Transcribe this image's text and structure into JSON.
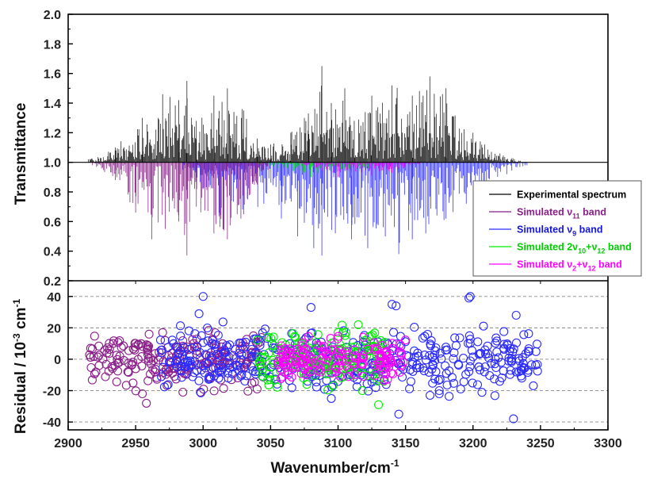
{
  "chart_data": [
    {
      "type": "line",
      "panel": "spectrum",
      "ylabel": "Transmittance",
      "ylim": [
        0.2,
        2.0
      ],
      "y_ticks": [
        "0.2",
        "0.4",
        "0.6",
        "0.8",
        "1.0",
        "1.2",
        "1.4",
        "1.6",
        "1.8",
        "2.0"
      ],
      "xlim": [
        2900,
        3300
      ],
      "baseline": 1.0,
      "series": [
        {
          "name": "Experimental spectrum",
          "color": "#000000",
          "direction": "up",
          "envelope": [
            [
              2915,
              1.02
            ],
            [
              2935,
              1.1
            ],
            [
              2955,
              1.3
            ],
            [
              2970,
              1.46
            ],
            [
              2982,
              1.42
            ],
            [
              2988,
              1.55
            ],
            [
              2995,
              1.28
            ],
            [
              3008,
              1.45
            ],
            [
              3018,
              1.5
            ],
            [
              3030,
              1.35
            ],
            [
              3040,
              1.16
            ],
            [
              3050,
              1.12
            ],
            [
              3065,
              1.2
            ],
            [
              3078,
              1.33
            ],
            [
              3088,
              1.65
            ],
            [
              3095,
              1.4
            ],
            [
              3105,
              1.5
            ],
            [
              3112,
              1.28
            ],
            [
              3125,
              1.45
            ],
            [
              3140,
              1.52
            ],
            [
              3155,
              1.45
            ],
            [
              3168,
              1.58
            ],
            [
              3180,
              1.5
            ],
            [
              3200,
              1.2
            ],
            [
              3220,
              1.06
            ],
            [
              3235,
              1.01
            ]
          ]
        },
        {
          "name": "Simulated ν11 band",
          "color": "#8b1f8b",
          "direction": "down",
          "envelope": [
            [
              2918,
              0.98
            ],
            [
              2935,
              0.88
            ],
            [
              2950,
              0.66
            ],
            [
              2962,
              0.48
            ],
            [
              2972,
              0.55
            ],
            [
              2982,
              0.6
            ],
            [
              2988,
              0.37
            ],
            [
              2995,
              0.7
            ],
            [
              3008,
              0.52
            ],
            [
              3018,
              0.48
            ],
            [
              3028,
              0.62
            ],
            [
              3040,
              0.85
            ],
            [
              3048,
              0.95
            ]
          ]
        },
        {
          "name": "Simulated ν9 band",
          "color": "#2b2bff",
          "direction": "down",
          "envelope": [
            [
              2985,
              0.95
            ],
            [
              3000,
              0.82
            ],
            [
              3015,
              0.55
            ],
            [
              3030,
              0.65
            ],
            [
              3045,
              0.72
            ],
            [
              3058,
              0.62
            ],
            [
              3070,
              0.5
            ],
            [
              3082,
              0.42
            ],
            [
              3088,
              0.37
            ],
            [
              3098,
              0.52
            ],
            [
              3110,
              0.48
            ],
            [
              3122,
              0.42
            ],
            [
              3135,
              0.5
            ],
            [
              3145,
              0.38
            ],
            [
              3155,
              0.48
            ],
            [
              3165,
              0.52
            ],
            [
              3180,
              0.62
            ],
            [
              3195,
              0.72
            ],
            [
              3210,
              0.82
            ],
            [
              3225,
              0.92
            ],
            [
              3240,
              0.98
            ]
          ]
        },
        {
          "name": "Simulated 2ν10+ν12 band",
          "color": "#00ee00",
          "direction": "down",
          "envelope": [
            [
              3040,
              0.99
            ],
            [
              3055,
              0.96
            ],
            [
              3070,
              0.92
            ],
            [
              3080,
              0.9
            ],
            [
              3095,
              0.94
            ],
            [
              3110,
              0.91
            ],
            [
              3120,
              0.95
            ],
            [
              3130,
              0.98
            ]
          ]
        },
        {
          "name": "Simulated ν2+ν12 band",
          "color": "#ff00ff",
          "direction": "down",
          "envelope": [
            [
              3070,
              0.99
            ],
            [
              3090,
              0.94
            ],
            [
              3100,
              0.9
            ],
            [
              3110,
              0.93
            ],
            [
              3125,
              0.91
            ],
            [
              3140,
              0.93
            ],
            [
              3150,
              0.96
            ],
            [
              3160,
              0.99
            ]
          ]
        }
      ],
      "legend": {
        "placement": "right",
        "entries": [
          {
            "label": "Experimental spectrum",
            "color": "#000000",
            "text_color": "#000000"
          },
          {
            "label": "Simulated ν11 band",
            "color": "#8b1f8b",
            "text_color": "#8b1f8b"
          },
          {
            "label": "Simulated ν9 band",
            "color": "#2b2bff",
            "text_color": "#1515dd"
          },
          {
            "label": "Simulated 2ν10+ν12 band",
            "color": "#00ee00",
            "text_color": "#00cc00"
          },
          {
            "label": "Simulated ν2+ν12 band",
            "color": "#ff00ff",
            "text_color": "#ff00ff"
          }
        ]
      }
    },
    {
      "type": "scatter",
      "panel": "residuals",
      "ylabel_main": "Residual / 10",
      "ylabel_sup": "-3",
      "ylabel_end": " cm",
      "ylabel_sup2": "-1",
      "ylim": [
        -45,
        50
      ],
      "y_ticks": [
        "-40",
        "-20",
        "0",
        "20",
        "40"
      ],
      "grid": "dashed horizontal",
      "xlabel_main": "Wavenumber/cm",
      "xlabel_sup": "-1",
      "xlim": [
        2900,
        3300
      ],
      "x_ticks": [
        "2900",
        "2950",
        "3000",
        "3050",
        "3100",
        "3150",
        "3200",
        "3250",
        "3300"
      ],
      "series": [
        {
          "name": "ν11",
          "color": "#8b1f8b",
          "x_range": [
            2915,
            3045
          ],
          "spread": 8,
          "outliers": [
            [
              2955,
              -22
            ],
            [
              2958,
              -28
            ],
            [
              2985,
              -21
            ],
            [
              2998,
              -21
            ],
            [
              3040,
              -19
            ],
            [
              2960,
              16
            ],
            [
              2970,
              17
            ]
          ]
        },
        {
          "name": "ν9",
          "color": "#2b2bff",
          "x_range": [
            2968,
            3248
          ],
          "spread": 9,
          "outliers": [
            [
              3000,
              40
            ],
            [
              2997,
              29
            ],
            [
              3080,
              33
            ],
            [
              3140,
              35
            ],
            [
              3143,
              34
            ],
            [
              3197,
              39
            ],
            [
              3198,
              40
            ],
            [
              3232,
              28
            ],
            [
              3230,
              -38
            ],
            [
              3145,
              -35
            ],
            [
              3175,
              -20
            ],
            [
              3175,
              -22
            ],
            [
              3095,
              -25
            ]
          ]
        },
        {
          "name": "2ν10+ν12",
          "color": "#00ee00",
          "x_range": [
            3040,
            3135
          ],
          "spread": 8,
          "outliers": [
            [
              3130,
              -29
            ],
            [
              3118,
              -20
            ],
            [
              3100,
              17
            ],
            [
              3115,
              22
            ]
          ]
        },
        {
          "name": "ν2+ν12",
          "color": "#ff00ff",
          "x_range": [
            3055,
            3150
          ],
          "spread": 6,
          "outliers": []
        }
      ]
    }
  ]
}
